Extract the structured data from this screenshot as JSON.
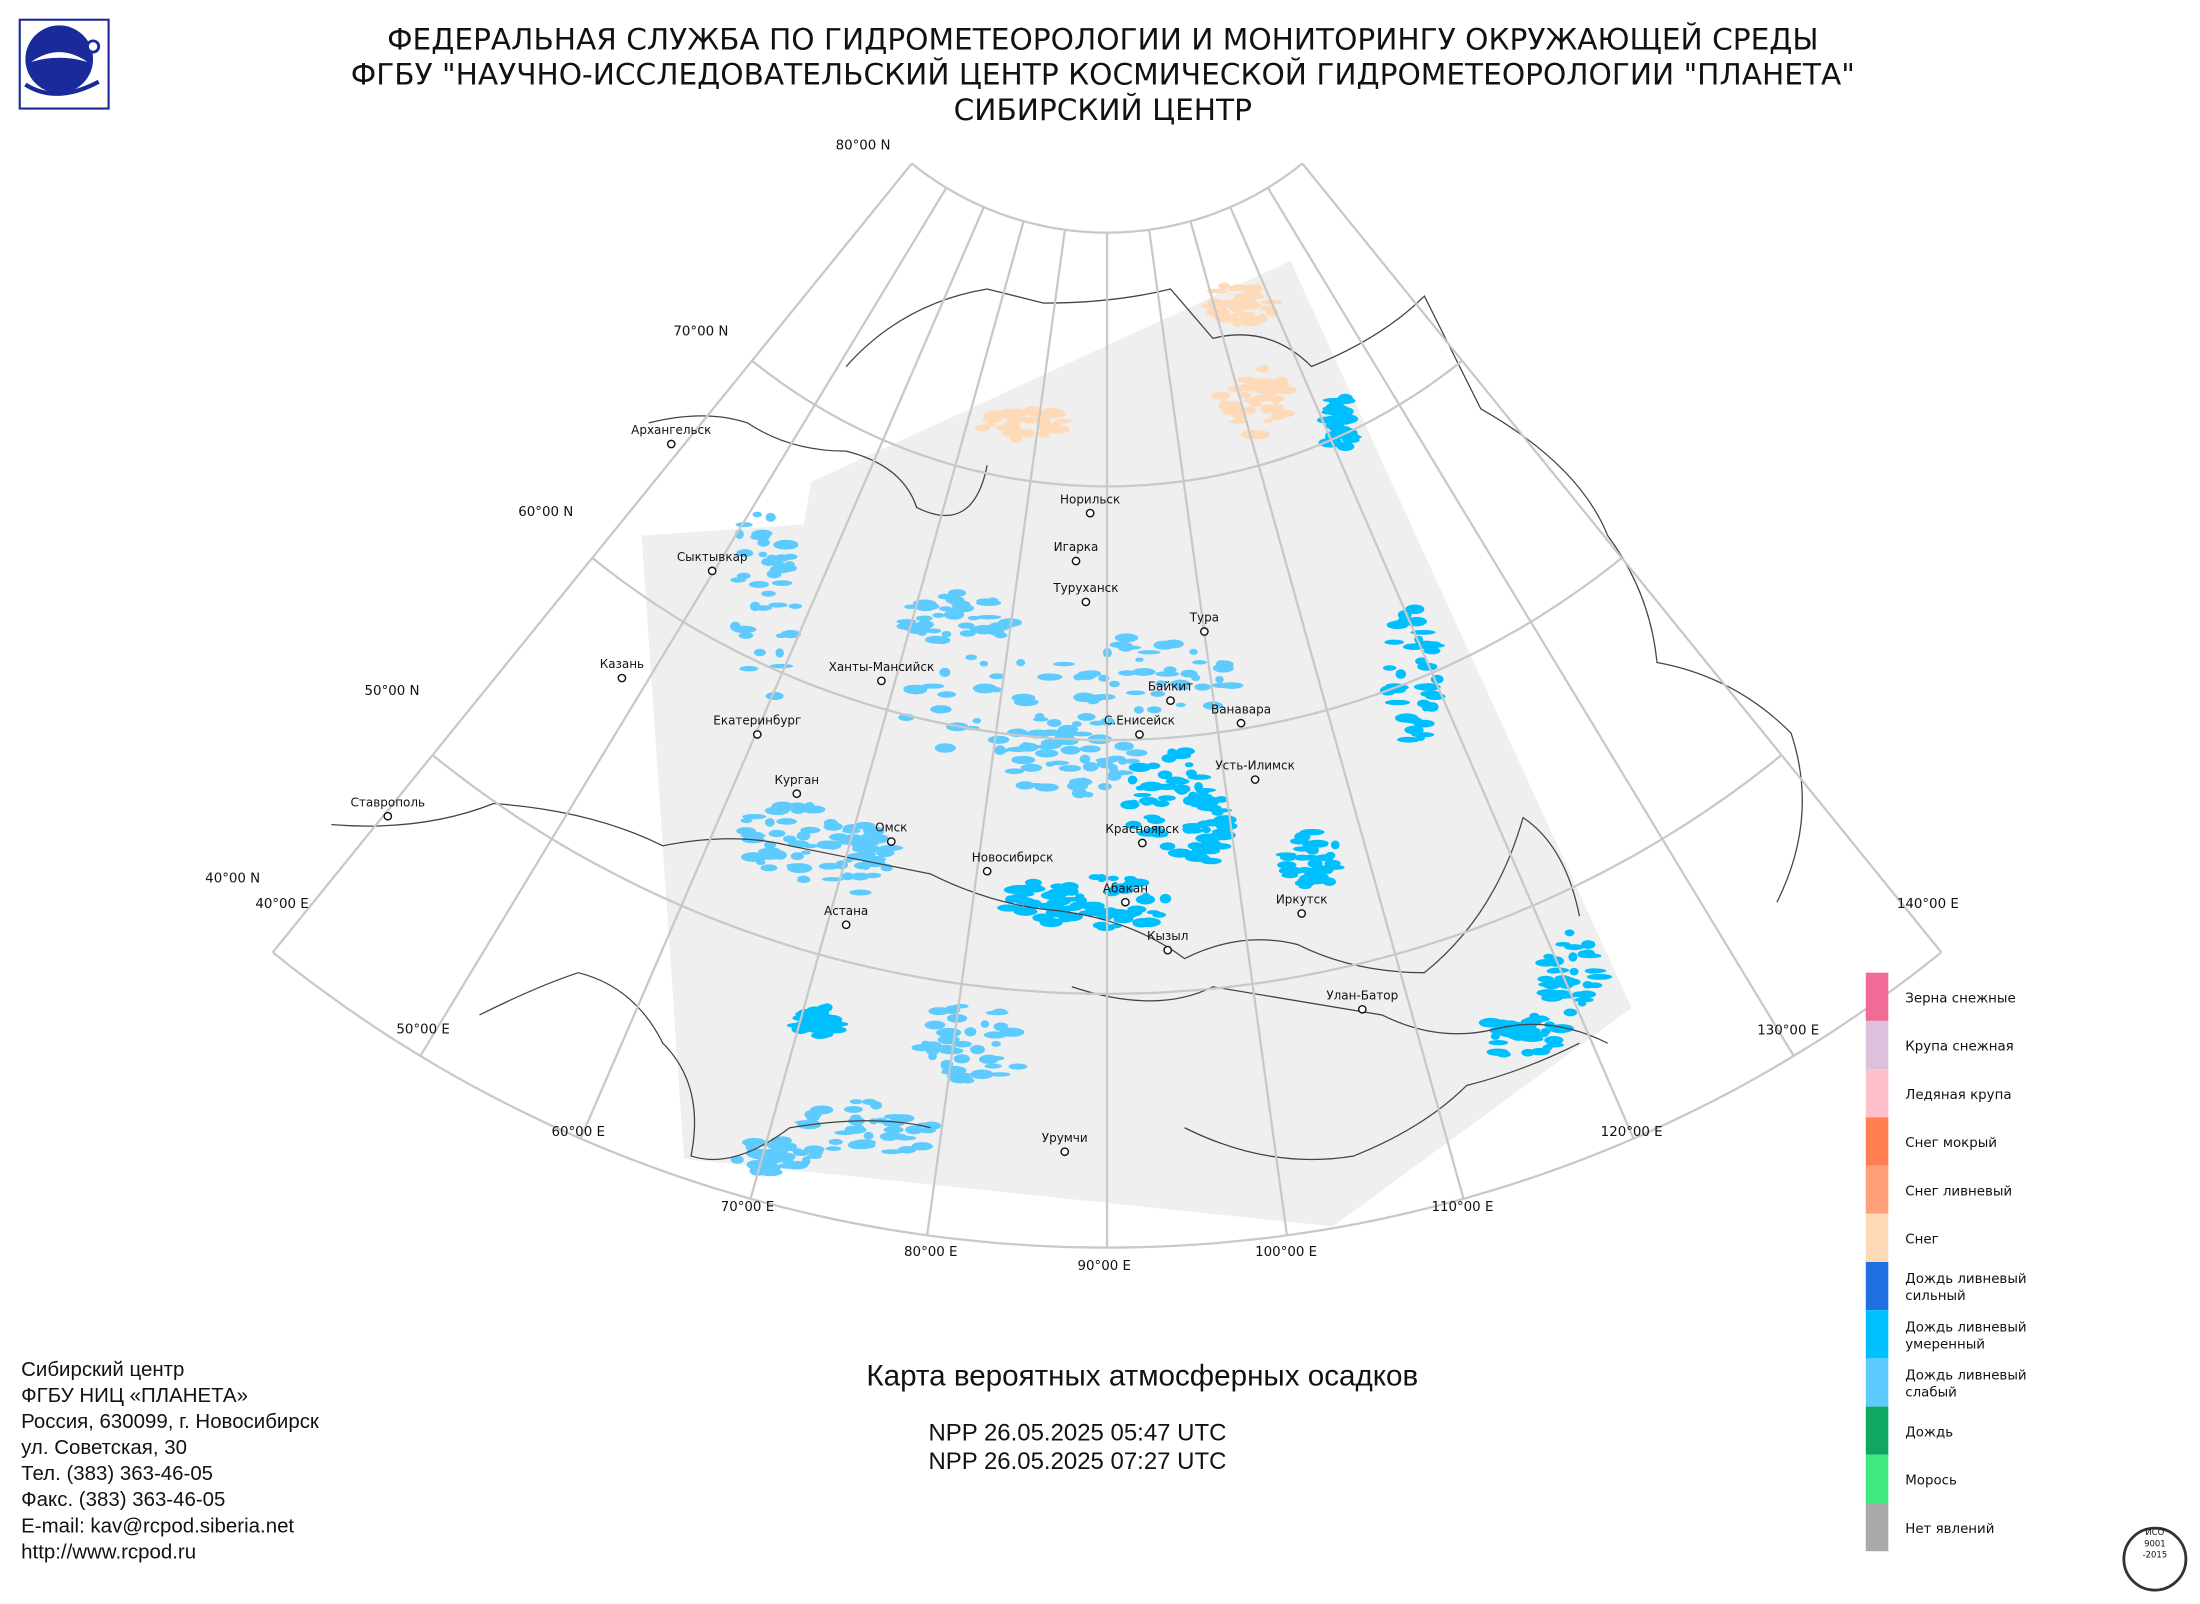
{
  "header": {
    "lines": [
      "ФЕДЕРАЛЬНАЯ СЛУЖБА ПО ГИДРОМЕТЕОРОЛОГИИ И МОНИТОРИНГУ ОКРУЖАЮЩЕЙ СРЕДЫ",
      "ФГБУ \"НАУЧНО-ИССЛЕДОВАТЕЛЬСКИЙ ЦЕНТР КОСМИЧЕСКОЙ ГИДРОМЕТЕОРОЛОГИИ \"ПЛАНЕТА\"",
      "СИБИРСКИЙ ЦЕНТР"
    ]
  },
  "graticule": {
    "parallels": [
      "80°00 N",
      "70°00 N",
      "60°00 N",
      "50°00 N",
      "40°00 N"
    ],
    "meridians": [
      "40°00 E",
      "50°00 E",
      "60°00 E",
      "70°00 E",
      "80°00 E",
      "90°00 E",
      "100°00 E",
      "110°00 E",
      "120°00 E",
      "130°00 E",
      "140°00 E"
    ]
  },
  "cities": [
    "Архангельск",
    "Сыктывкар",
    "Казань",
    "Екатеринбург",
    "Ставрополь",
    "Курган",
    "Ханты-Мансийск",
    "Омск",
    "Астана",
    "Новосибирск",
    "Норильск",
    "Игарка",
    "Туруханск",
    "Тура",
    "Байкит",
    "Ванавара",
    "С.Енисейск",
    "Усть-Илимск",
    "Красноярск",
    "Абакан",
    "Кызыл",
    "Иркутск",
    "Улан-Батор",
    "Урумчи"
  ],
  "legend": [
    {
      "label": [
        "Зерна снежные"
      ],
      "color": "#f06b96"
    },
    {
      "label": [
        "Крупа снежная"
      ],
      "color": "#dcc0dc"
    },
    {
      "label": [
        "Ледяная крупа"
      ],
      "color": "#ffc0cb"
    },
    {
      "label": [
        "Снег мокрый"
      ],
      "color": "#ff7f50"
    },
    {
      "label": [
        "Снег ливневый"
      ],
      "color": "#ffa07a"
    },
    {
      "label": [
        "Снег"
      ],
      "color": "#ffdab9"
    },
    {
      "label": [
        "Дождь ливневый",
        "сильный"
      ],
      "color": "#1e6fe0"
    },
    {
      "label": [
        "Дождь ливневый",
        "умеренный"
      ],
      "color": "#00bfff"
    },
    {
      "label": [
        "Дождь ливневый",
        "слабый"
      ],
      "color": "#5ecbff"
    },
    {
      "label": [
        "Дождь"
      ],
      "color": "#10a860"
    },
    {
      "label": [
        "Морось"
      ],
      "color": "#40e880"
    },
    {
      "label": [
        "Нет явлений"
      ],
      "color": "#a9a9a9"
    }
  ],
  "map_title": "Карта вероятных атмосферных осадков",
  "passes": [
    "NPP 26.05.2025  05:47 UTC",
    "NPP 26.05.2025  07:27 UTC"
  ],
  "footer": {
    "lines": [
      "Сибирский центр",
      "ФГБУ НИЦ «ПЛАНЕТА»",
      "Россия, 630099, г. Новосибирск",
      "ул. Советская, 30",
      "Тел. (383) 363-46-05",
      "Факс. (383) 363-46-05",
      "E-mail: kav@rcpod.siberia.net",
      "http://www.rcpod.ru"
    ]
  },
  "badge": [
    "ИСО",
    "9001",
    "-2015"
  ]
}
